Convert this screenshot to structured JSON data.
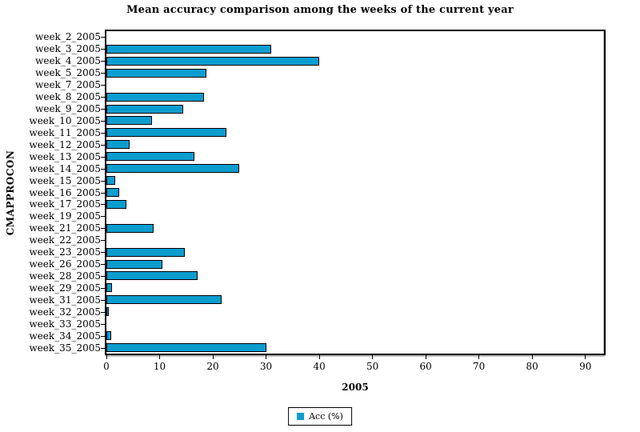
{
  "title": "Mean accuracy comparison among the weeks of the current year",
  "chart_data": {
    "type": "bar",
    "orientation": "horizontal",
    "title": "Mean accuracy comparison among the weeks of the current year",
    "xlabel": "2005",
    "ylabel": "CMAPPROCON",
    "categories": [
      "week_2_2005",
      "week_3_2005",
      "week_4_2005",
      "week_5_2005",
      "week_7_2005",
      "week_8_2005",
      "week_9_2005",
      "week_10_2005",
      "week_11_2005",
      "week_12_2005",
      "week_13_2005",
      "week_14_2005",
      "week_15_2005",
      "week_16_2005",
      "week_17_2005",
      "week_19_2005",
      "week_21_2005",
      "week_22_2005",
      "week_23_2005",
      "week_26_2005",
      "week_28_2005",
      "week_29_2005",
      "week_31_2005",
      "week_32_2005",
      "week_33_2005",
      "week_34_2005",
      "week_35_2005"
    ],
    "values": [
      0,
      31,
      40,
      18.8,
      0,
      18.3,
      14.4,
      8.6,
      22.5,
      4.4,
      16.5,
      25,
      1.7,
      2.4,
      3.8,
      0,
      8.8,
      0,
      14.8,
      10.5,
      17.1,
      1.1,
      21.6,
      0.5,
      0,
      0.9,
      30.1
    ],
    "xlim": [
      0,
      93.5
    ],
    "xticks": [
      0,
      10,
      20,
      30,
      40,
      50,
      60,
      70,
      80,
      90
    ],
    "grid": false,
    "legend_position": "bottom",
    "legend_label": "Acc (%)",
    "bar_color": "#0c9dd0",
    "bar_border_color": "#000000",
    "plot_border_color": "#000000",
    "background_color": "#ffffff"
  }
}
